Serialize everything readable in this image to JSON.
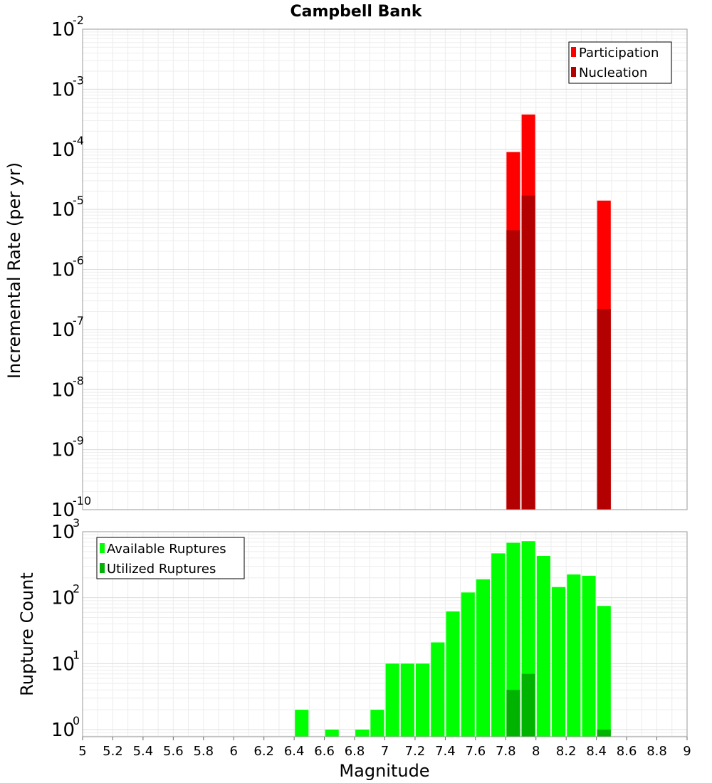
{
  "chart_data": [
    {
      "type": "bar",
      "title": "Campbell Bank",
      "xlabel": "",
      "ylabel": "Incremental Rate (per yr)",
      "xlim": [
        5,
        9
      ],
      "ylim": [
        1e-10,
        0.01
      ],
      "yscale": "log",
      "grid": true,
      "legend_position": "top-right",
      "bar_width": 0.09,
      "y_ticks": [
        {
          "base": "10",
          "exp": "-10",
          "value": 1e-10
        },
        {
          "base": "10",
          "exp": "-9",
          "value": 1e-09
        },
        {
          "base": "10",
          "exp": "-8",
          "value": 1e-08
        },
        {
          "base": "10",
          "exp": "-7",
          "value": 1e-07
        },
        {
          "base": "10",
          "exp": "-6",
          "value": 1e-06
        },
        {
          "base": "10",
          "exp": "-5",
          "value": 1e-05
        },
        {
          "base": "10",
          "exp": "-4",
          "value": 0.0001
        },
        {
          "base": "10",
          "exp": "-3",
          "value": 0.001
        },
        {
          "base": "10",
          "exp": "-2",
          "value": 0.01
        }
      ],
      "series": [
        {
          "name": "Participation",
          "color": "#ff0000",
          "x": [
            7.85,
            7.95,
            8.45
          ],
          "values": [
            9e-05,
            0.00038,
            1.4e-05
          ]
        },
        {
          "name": "Nucleation",
          "color": "#b30000",
          "x": [
            7.85,
            7.95,
            8.45
          ],
          "values": [
            4.5e-06,
            1.7e-05,
            2.2e-07
          ]
        }
      ]
    },
    {
      "type": "bar",
      "xlabel": "Magnitude",
      "ylabel": "Rupture Count",
      "xlim": [
        5,
        9
      ],
      "ylim": [
        0.78,
        1000
      ],
      "yscale": "log",
      "grid": true,
      "legend_position": "top-left",
      "bar_width": 0.09,
      "x_ticks": [
        "5",
        "5.2",
        "5.4",
        "5.6",
        "5.8",
        "6",
        "6.2",
        "6.4",
        "6.6",
        "6.8",
        "7",
        "7.2",
        "7.4",
        "7.6",
        "7.8",
        "8",
        "8.2",
        "8.4",
        "8.6",
        "8.8",
        "9"
      ],
      "y_ticks": [
        {
          "base": "10",
          "exp": "0",
          "value": 1
        },
        {
          "base": "10",
          "exp": "1",
          "value": 10
        },
        {
          "base": "10",
          "exp": "2",
          "value": 100
        },
        {
          "base": "10",
          "exp": "3",
          "value": 1000
        }
      ],
      "series": [
        {
          "name": "Available Ruptures",
          "color": "#00ff00",
          "x": [
            6.45,
            6.65,
            6.85,
            6.95,
            7.05,
            7.15,
            7.25,
            7.35,
            7.45,
            7.55,
            7.65,
            7.75,
            7.85,
            7.95,
            8.05,
            8.15,
            8.25,
            8.35,
            8.45
          ],
          "values": [
            2,
            1,
            1,
            2,
            10,
            10,
            10,
            21,
            62,
            120,
            190,
            470,
            680,
            720,
            430,
            145,
            225,
            215,
            75
          ]
        },
        {
          "name": "Utilized Ruptures",
          "color": "#00b300",
          "x": [
            7.85,
            7.95,
            8.45
          ],
          "values": [
            4,
            7,
            1
          ]
        }
      ]
    }
  ]
}
